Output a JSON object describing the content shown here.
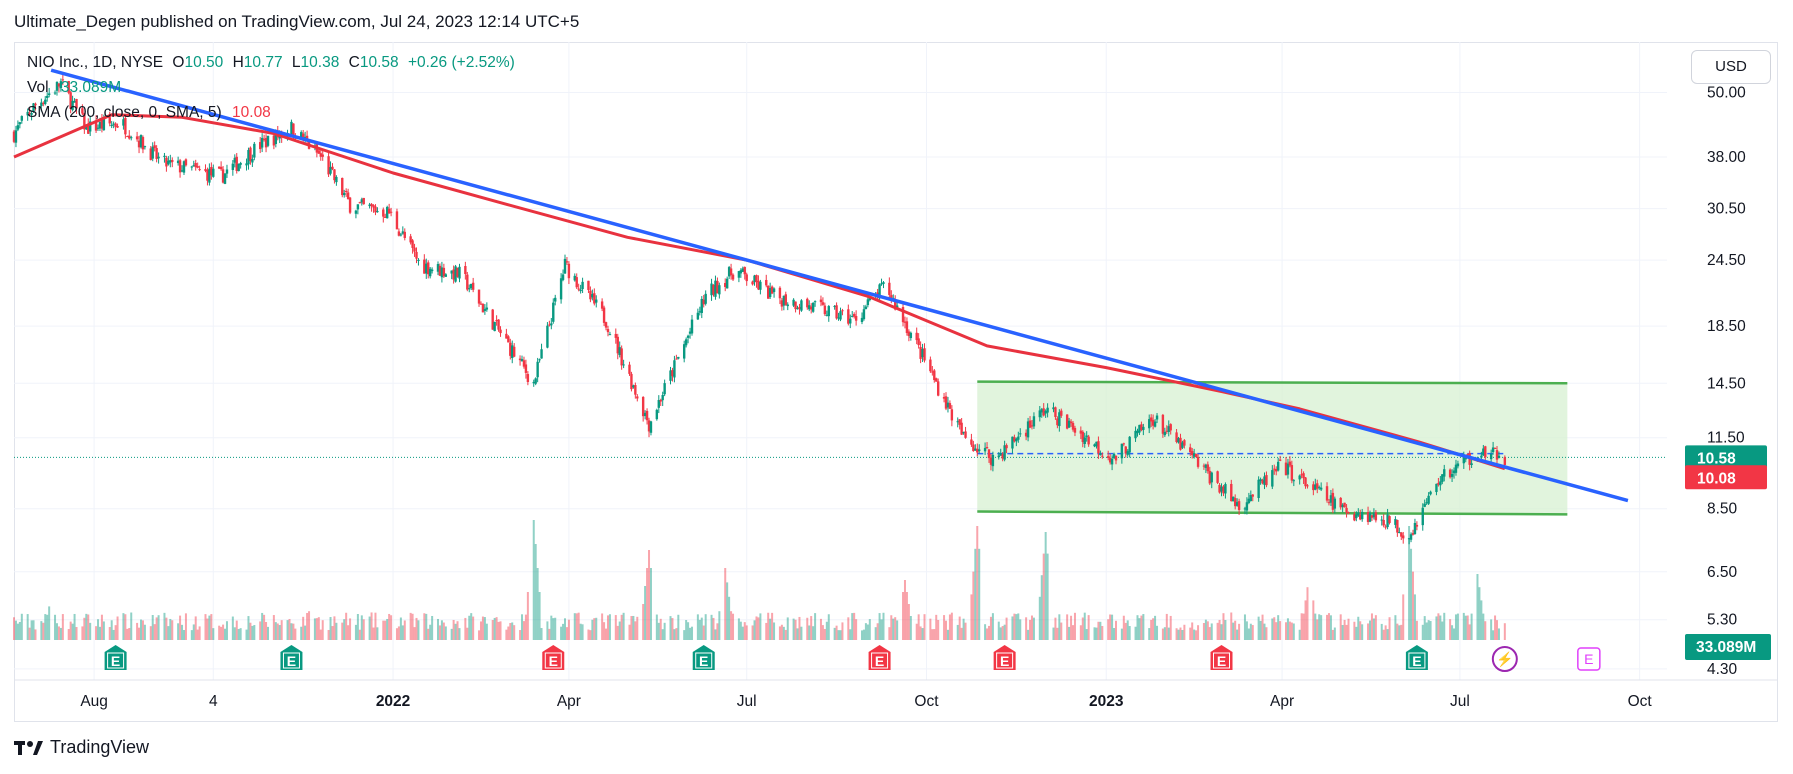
{
  "publisher_line": "Ultimate_Degen published on TradingView.com, Jul 24, 2023 12:14 UTC+5",
  "legend": {
    "symbol": "NIO Inc., 1D, NYSE",
    "o_label": "O",
    "o_value": "10.50",
    "h_label": "H",
    "h_value": "10.77",
    "l_label": "L",
    "l_value": "10.38",
    "c_label": "C",
    "c_value": "10.58",
    "change": "+0.26 (+2.52%)",
    "vol_label": "Vol",
    "vol_value": "33.089M",
    "sma_label": "SMA (200, close, 0, SMA, 5)",
    "sma_value": "10.08"
  },
  "currency": "USD",
  "footer_brand": "TradingView",
  "colors": {
    "up": "#089981",
    "down": "#f23645",
    "sma": "#e8323f",
    "trendline": "#2962ff",
    "channel_fill": "#d7f0d1",
    "channel_line": "#4caf50",
    "earnings": "#089981",
    "earnings_down": "#f23645",
    "dividend": "#9c27b0"
  },
  "chart_data": {
    "type": "candlestick",
    "title": "NIO Inc., 1D, NYSE",
    "y_scale": "log",
    "ylim": [
      4.1,
      62
    ],
    "x_range": [
      "2021-06-21",
      "2023-10-15"
    ],
    "y_ticks": [
      "50.00",
      "38.00",
      "30.50",
      "24.50",
      "18.50",
      "14.50",
      "11.50",
      "8.50",
      "6.50",
      "5.30",
      "4.30"
    ],
    "x_ticks": [
      {
        "date": "2021-08-01",
        "label": "Aug",
        "bold": false
      },
      {
        "date": "2021-10-01",
        "label": "4",
        "bold": false
      },
      {
        "date": "2022-01-01",
        "label": "2022",
        "bold": true
      },
      {
        "date": "2022-04-01",
        "label": "Apr",
        "bold": false
      },
      {
        "date": "2022-07-01",
        "label": "Jul",
        "bold": false
      },
      {
        "date": "2022-10-01",
        "label": "Oct",
        "bold": false
      },
      {
        "date": "2023-01-01",
        "label": "2023",
        "bold": true
      },
      {
        "date": "2023-04-01",
        "label": "Apr",
        "bold": false
      },
      {
        "date": "2023-07-01",
        "label": "Jul",
        "bold": false
      },
      {
        "date": "2023-10-01",
        "label": "Oct",
        "bold": false
      }
    ],
    "price_path": [
      [
        "2021-06-21",
        42
      ],
      [
        "2021-07-01",
        47
      ],
      [
        "2021-07-15",
        52
      ],
      [
        "2021-07-28",
        43
      ],
      [
        "2021-08-15",
        44
      ],
      [
        "2021-09-05",
        37
      ],
      [
        "2021-10-05",
        35
      ],
      [
        "2021-10-25",
        40
      ],
      [
        "2021-11-10",
        43
      ],
      [
        "2021-11-25",
        38
      ],
      [
        "2021-12-10",
        31
      ],
      [
        "2021-12-30",
        30
      ],
      [
        "2022-01-15",
        24
      ],
      [
        "2022-02-05",
        23
      ],
      [
        "2022-03-14",
        14.5
      ],
      [
        "2022-03-30",
        24
      ],
      [
        "2022-04-20",
        19
      ],
      [
        "2022-05-12",
        12.2
      ],
      [
        "2022-06-10",
        21
      ],
      [
        "2022-06-25",
        23.5
      ],
      [
        "2022-07-15",
        21
      ],
      [
        "2022-08-05",
        20
      ],
      [
        "2022-08-25",
        19
      ],
      [
        "2022-09-10",
        22
      ],
      [
        "2022-09-30",
        16
      ],
      [
        "2022-10-20",
        11.5
      ],
      [
        "2022-11-05",
        10.5
      ],
      [
        "2022-12-01",
        13
      ],
      [
        "2022-12-15",
        12
      ],
      [
        "2023-01-05",
        10.5
      ],
      [
        "2023-01-25",
        12.5
      ],
      [
        "2023-02-15",
        10.5
      ],
      [
        "2023-03-10",
        8.6
      ],
      [
        "2023-04-01",
        10.2
      ],
      [
        "2023-05-01",
        8.5
      ],
      [
        "2023-05-25",
        8.1
      ],
      [
        "2023-06-05",
        7.6
      ],
      [
        "2023-06-20",
        9.6
      ],
      [
        "2023-07-10",
        10.8
      ],
      [
        "2023-07-24",
        10.58
      ]
    ],
    "volume_peaks": [
      [
        "2021-07-10",
        0.35
      ],
      [
        "2021-11-20",
        0.3
      ],
      [
        "2022-03-14",
        1.0
      ],
      [
        "2022-05-12",
        0.75
      ],
      [
        "2022-06-20",
        0.6
      ],
      [
        "2022-09-20",
        0.5
      ],
      [
        "2022-10-27",
        0.95
      ],
      [
        "2022-12-01",
        0.9
      ],
      [
        "2023-04-15",
        0.55
      ],
      [
        "2023-06-05",
        0.95
      ],
      [
        "2023-07-10",
        0.55
      ]
    ],
    "sma_200": [
      [
        "2021-06-21",
        38
      ],
      [
        "2021-08-10",
        45.5
      ],
      [
        "2021-09-15",
        45
      ],
      [
        "2021-11-01",
        42
      ],
      [
        "2022-01-01",
        35.5
      ],
      [
        "2022-03-01",
        31
      ],
      [
        "2022-05-01",
        27
      ],
      [
        "2022-07-01",
        24.5
      ],
      [
        "2022-09-01",
        21
      ],
      [
        "2022-11-01",
        17
      ],
      [
        "2023-01-01",
        15.5
      ],
      [
        "2023-03-01",
        14
      ],
      [
        "2023-04-10",
        13
      ],
      [
        "2023-06-10",
        11.3
      ],
      [
        "2023-07-24",
        10.08
      ]
    ],
    "last_price": 10.58,
    "last_price_label": "10.58",
    "sma_last_label": "10.08",
    "volume_last_label": "33.089M",
    "annotations": {
      "trendline": [
        [
          "2021-07-10",
          55
        ],
        [
          "2023-09-25",
          8.8
        ]
      ],
      "channel_top": [
        [
          "2022-10-27",
          14.6
        ],
        [
          "2023-08-25",
          14.5
        ]
      ],
      "channel_bottom": [
        [
          "2022-10-27",
          8.4
        ],
        [
          "2023-08-25",
          8.3
        ]
      ],
      "dashed_level": {
        "from": "2022-10-27",
        "to": "2023-07-24",
        "value": 10.75
      }
    },
    "events": [
      {
        "date": "2021-08-12",
        "label": "E",
        "kind": "up"
      },
      {
        "date": "2021-11-10",
        "label": "E",
        "kind": "up"
      },
      {
        "date": "2022-03-24",
        "label": "E",
        "kind": "down"
      },
      {
        "date": "2022-06-09",
        "label": "E",
        "kind": "up"
      },
      {
        "date": "2022-09-07",
        "label": "E",
        "kind": "down"
      },
      {
        "date": "2022-11-10",
        "label": "E",
        "kind": "down"
      },
      {
        "date": "2023-03-01",
        "label": "E",
        "kind": "down"
      },
      {
        "date": "2023-06-09",
        "label": "E",
        "kind": "up"
      },
      {
        "date": "2023-07-24",
        "label": "⚡",
        "kind": "split"
      },
      {
        "date": "2023-09-05",
        "label": "E",
        "kind": "future"
      }
    ]
  }
}
